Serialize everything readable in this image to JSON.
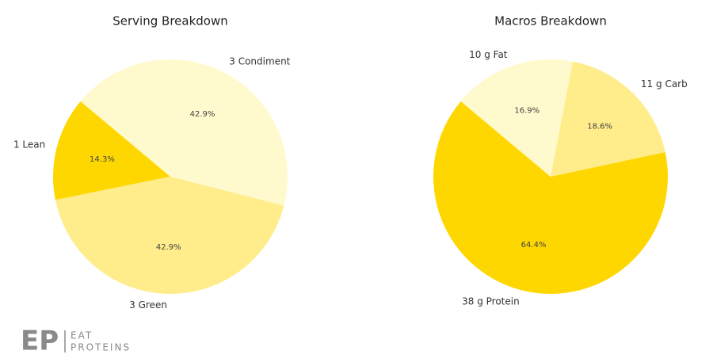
{
  "chart_data": [
    {
      "type": "pie",
      "title": "Serving Breakdown",
      "categories": [
        "1 Lean",
        "3 Green",
        "3 Condiment"
      ],
      "values": [
        14.3,
        42.9,
        42.9
      ],
      "value_labels": [
        "14.3%",
        "42.9%",
        "42.9%"
      ],
      "colors": [
        "#FFD700",
        "#FFEC8B",
        "#FFFACD"
      ]
    },
    {
      "type": "pie",
      "title": "Macros Breakdown",
      "categories": [
        "38 g Protein",
        "11 g Carb",
        "10 g Fat"
      ],
      "values": [
        64.4,
        18.6,
        16.9
      ],
      "value_labels": [
        "64.4%",
        "18.6%",
        "16.9%"
      ],
      "colors": [
        "#FFD700",
        "#FFEC8B",
        "#FFFACD"
      ]
    }
  ],
  "logo": {
    "mark": "EP",
    "text_top": "EAT",
    "text_bottom": "PROTEINS"
  }
}
